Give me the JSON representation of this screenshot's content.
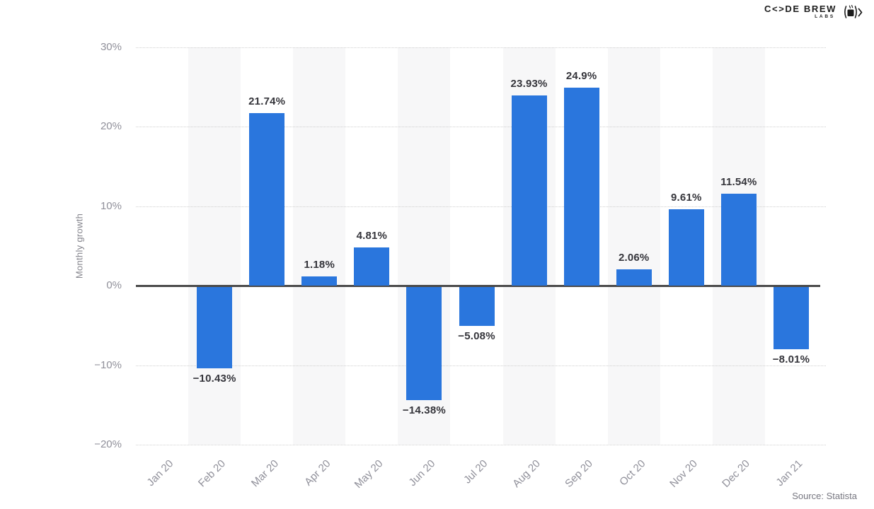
{
  "branding": {
    "logo_main": "C<>DE BREW",
    "logo_sub": "LABS",
    "logo_icon": "coffee-mug-code-icon"
  },
  "source": {
    "text": "Source: Statista"
  },
  "chart_data": {
    "type": "bar",
    "title": "",
    "xlabel": "",
    "ylabel": "Monthly growth",
    "categories": [
      "Jan 20",
      "Feb 20",
      "Mar 20",
      "Apr 20",
      "May 20",
      "Jun 20",
      "Jul 20",
      "Aug 20",
      "Sep 20",
      "Oct 20",
      "Nov 20",
      "Dec 20",
      "Jan 21"
    ],
    "values": [
      null,
      -10.43,
      21.74,
      1.18,
      4.81,
      -14.38,
      -5.08,
      23.93,
      24.9,
      2.06,
      9.61,
      11.54,
      -8.01
    ],
    "value_labels": [
      "",
      "−10.43%",
      "21.74%",
      "1.18%",
      "4.81%",
      "−14.38%",
      "−5.08%",
      "23.93%",
      "24.9%",
      "2.06%",
      "9.61%",
      "11.54%",
      "−8.01%"
    ],
    "ylim": [
      -20,
      30
    ],
    "yticks": [
      30,
      20,
      10,
      0,
      -10,
      -20
    ],
    "ytick_labels": [
      "30%",
      "20%",
      "10%",
      "0%",
      "−10%",
      "−20%"
    ],
    "grid": "horizontal-dotted",
    "legend": "none",
    "bar_color": "#2a76dd",
    "band_color": "#f7f7f8",
    "zero_line_color": "#4a4a4a",
    "alternating_column_bands": true
  }
}
